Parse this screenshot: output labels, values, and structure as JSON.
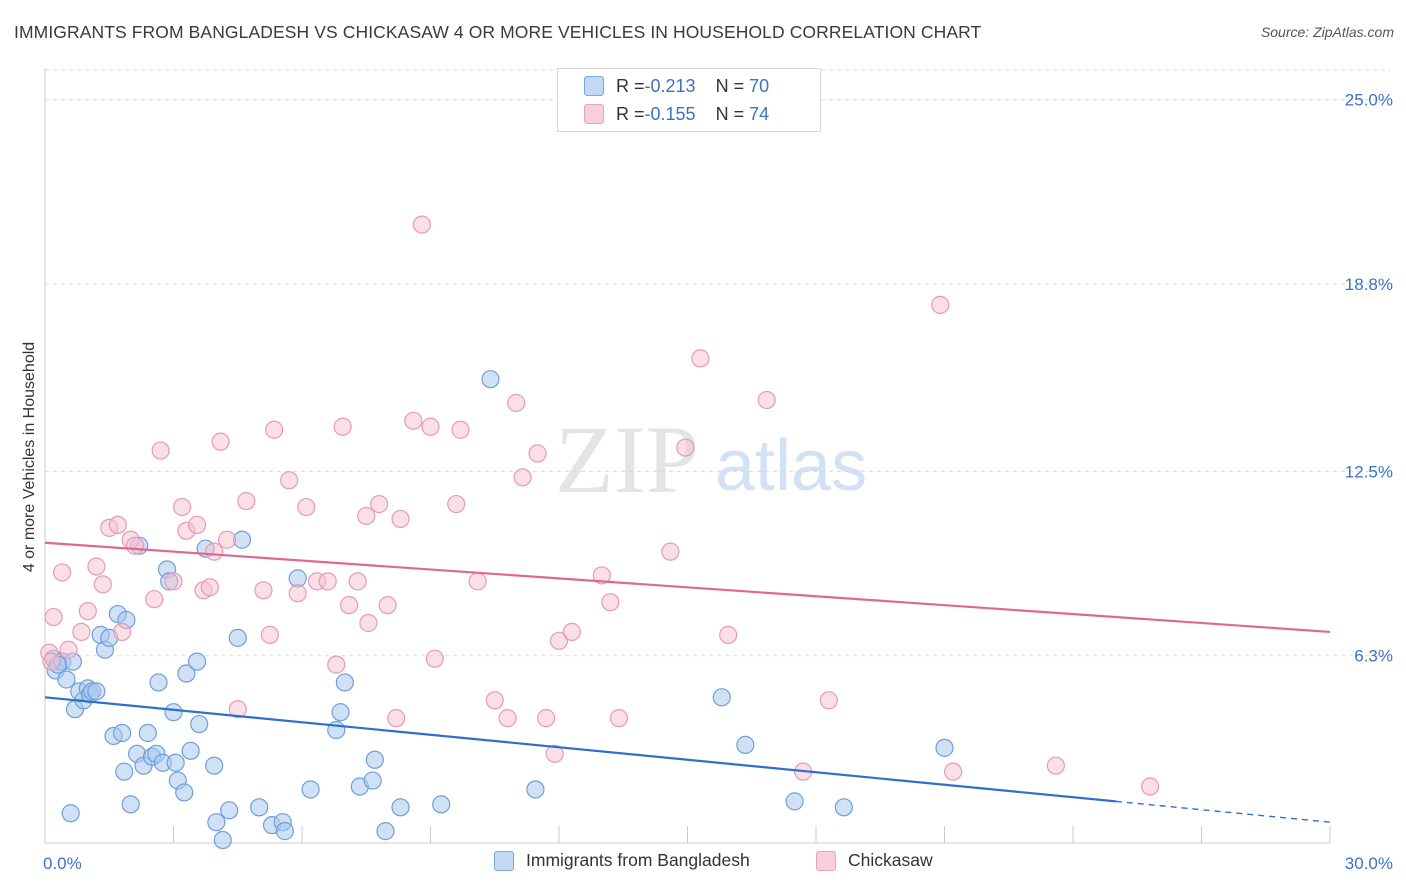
{
  "title": "IMMIGRANTS FROM BANGLADESH VS CHICKASAW 4 OR MORE VEHICLES IN HOUSEHOLD CORRELATION CHART",
  "source": "Source: ZipAtlas.com",
  "watermark": {
    "zip": "ZIP",
    "atlas": "atlas"
  },
  "colors": {
    "blue_fill": "#a9c8ef",
    "blue_stroke": "#6f9fd8",
    "blue_line": "#2f6fcc",
    "pink_fill": "#f5bfd0",
    "pink_stroke": "#e79ab4",
    "pink_line": "#e0688f",
    "tick_label": "#3a73c4",
    "grid": "#d9d9d9"
  },
  "legend": {
    "row1": {
      "r_label": "R = ",
      "r_value": "-0.213",
      "n_label": "N = ",
      "n_value": "70"
    },
    "row2": {
      "r_label": "R = ",
      "r_value": "-0.155",
      "n_label": "N = ",
      "n_value": "74"
    }
  },
  "chart_data": {
    "type": "scatter",
    "title": "IMMIGRANTS FROM BANGLADESH VS CHICKASAW 4 OR MORE VEHICLES IN HOUSEHOLD CORRELATION CHART",
    "xlabel": "",
    "ylabel": "4 or more Vehicles in Household",
    "xlim": [
      0,
      30
    ],
    "ylim": [
      0,
      26
    ],
    "x_tick_labels": [
      "0.0%",
      "30.0%"
    ],
    "y_ticks": [
      6.3,
      12.5,
      18.8,
      25.0
    ],
    "y_tick_labels": [
      "6.3%",
      "12.5%",
      "18.8%",
      "25.0%"
    ],
    "grid": true,
    "legend_position": "top-center",
    "series": [
      {
        "name": "Immigrants from Bangladesh",
        "color": "#a9c8ef",
        "trend": {
          "x": [
            0,
            25.0,
            30
          ],
          "y": [
            4.9,
            1.4,
            0.7
          ],
          "solid_until": 25.0
        },
        "points": [
          [
            0.2,
            6.2
          ],
          [
            0.25,
            5.8
          ],
          [
            0.4,
            6.1
          ],
          [
            0.5,
            5.5
          ],
          [
            0.7,
            4.5
          ],
          [
            0.8,
            5.1
          ],
          [
            0.9,
            4.8
          ],
          [
            1.0,
            5.2
          ],
          [
            1.05,
            5.0
          ],
          [
            1.1,
            5.1
          ],
          [
            0.6,
            1.0
          ],
          [
            0.65,
            6.1
          ],
          [
            1.3,
            7.0
          ],
          [
            1.4,
            6.5
          ],
          [
            1.5,
            6.9
          ],
          [
            1.6,
            3.6
          ],
          [
            1.7,
            7.7
          ],
          [
            1.8,
            3.7
          ],
          [
            1.9,
            7.5
          ],
          [
            2.0,
            1.3
          ],
          [
            1.85,
            2.4
          ],
          [
            2.2,
            10.0
          ],
          [
            2.15,
            3.0
          ],
          [
            2.3,
            2.6
          ],
          [
            2.4,
            3.7
          ],
          [
            2.5,
            2.9
          ],
          [
            2.6,
            3.0
          ],
          [
            2.65,
            5.4
          ],
          [
            2.75,
            2.7
          ],
          [
            2.85,
            9.2
          ],
          [
            2.9,
            8.8
          ],
          [
            3.0,
            4.4
          ],
          [
            3.05,
            2.7
          ],
          [
            3.1,
            2.1
          ],
          [
            3.25,
            1.7
          ],
          [
            3.3,
            5.7
          ],
          [
            3.4,
            3.1
          ],
          [
            3.55,
            6.1
          ],
          [
            3.6,
            4.0
          ],
          [
            3.75,
            9.9
          ],
          [
            3.95,
            2.6
          ],
          [
            4.0,
            0.7
          ],
          [
            4.15,
            0.1
          ],
          [
            4.3,
            1.1
          ],
          [
            4.5,
            6.9
          ],
          [
            4.6,
            10.2
          ],
          [
            5.0,
            1.2
          ],
          [
            5.3,
            0.6
          ],
          [
            5.55,
            0.7
          ],
          [
            5.6,
            0.4
          ],
          [
            5.9,
            8.9
          ],
          [
            6.2,
            1.8
          ],
          [
            6.8,
            3.8
          ],
          [
            6.9,
            4.4
          ],
          [
            7.0,
            5.4
          ],
          [
            7.35,
            1.9
          ],
          [
            7.65,
            2.1
          ],
          [
            7.7,
            2.8
          ],
          [
            7.95,
            0.4
          ],
          [
            8.3,
            1.2
          ],
          [
            9.25,
            1.3
          ],
          [
            10.4,
            15.6
          ],
          [
            11.45,
            1.8
          ],
          [
            15.8,
            4.9
          ],
          [
            16.35,
            3.3
          ],
          [
            17.5,
            1.4
          ],
          [
            18.65,
            1.2
          ],
          [
            21.0,
            3.2
          ],
          [
            1.2,
            5.1
          ],
          [
            0.3,
            6.0
          ]
        ]
      },
      {
        "name": "Chickasaw",
        "color": "#f5bfd0",
        "trend": {
          "x": [
            0,
            30
          ],
          "y": [
            10.1,
            7.1
          ]
        },
        "points": [
          [
            0.1,
            6.4
          ],
          [
            0.15,
            6.1
          ],
          [
            0.2,
            7.6
          ],
          [
            0.4,
            9.1
          ],
          [
            0.55,
            6.5
          ],
          [
            0.85,
            7.1
          ],
          [
            1.0,
            7.8
          ],
          [
            1.2,
            9.3
          ],
          [
            1.35,
            8.7
          ],
          [
            1.5,
            10.6
          ],
          [
            1.7,
            10.7
          ],
          [
            1.8,
            7.1
          ],
          [
            2.0,
            10.2
          ],
          [
            2.1,
            10.0
          ],
          [
            2.55,
            8.2
          ],
          [
            2.7,
            13.2
          ],
          [
            3.0,
            8.8
          ],
          [
            3.2,
            11.3
          ],
          [
            3.3,
            10.5
          ],
          [
            3.55,
            10.7
          ],
          [
            3.7,
            8.5
          ],
          [
            3.85,
            8.6
          ],
          [
            3.95,
            9.8
          ],
          [
            4.1,
            13.5
          ],
          [
            4.25,
            10.2
          ],
          [
            4.5,
            4.5
          ],
          [
            4.7,
            11.5
          ],
          [
            5.1,
            8.5
          ],
          [
            5.25,
            7.0
          ],
          [
            5.35,
            13.9
          ],
          [
            5.7,
            12.2
          ],
          [
            5.9,
            8.4
          ],
          [
            6.1,
            11.3
          ],
          [
            6.35,
            8.8
          ],
          [
            6.6,
            8.8
          ],
          [
            6.8,
            6.0
          ],
          [
            6.95,
            14.0
          ],
          [
            7.1,
            8.0
          ],
          [
            7.3,
            8.8
          ],
          [
            7.5,
            11.0
          ],
          [
            7.55,
            7.4
          ],
          [
            7.8,
            11.4
          ],
          [
            8.0,
            8.0
          ],
          [
            8.2,
            4.2
          ],
          [
            8.3,
            10.9
          ],
          [
            8.6,
            14.2
          ],
          [
            8.8,
            20.8
          ],
          [
            9.0,
            14.0
          ],
          [
            9.1,
            6.2
          ],
          [
            9.6,
            11.4
          ],
          [
            9.7,
            13.9
          ],
          [
            10.1,
            8.8
          ],
          [
            10.5,
            4.8
          ],
          [
            10.8,
            4.2
          ],
          [
            11.0,
            14.8
          ],
          [
            11.15,
            12.3
          ],
          [
            11.5,
            13.1
          ],
          [
            11.7,
            4.2
          ],
          [
            11.9,
            3.0
          ],
          [
            12.0,
            6.8
          ],
          [
            12.3,
            7.1
          ],
          [
            13.0,
            9.0
          ],
          [
            13.2,
            8.1
          ],
          [
            13.4,
            4.2
          ],
          [
            14.6,
            9.8
          ],
          [
            14.95,
            13.3
          ],
          [
            15.3,
            16.3
          ],
          [
            15.95,
            7.0
          ],
          [
            16.85,
            14.9
          ],
          [
            17.7,
            2.4
          ],
          [
            18.3,
            4.8
          ],
          [
            20.9,
            18.1
          ],
          [
            21.2,
            2.4
          ],
          [
            23.6,
            2.6
          ],
          [
            25.8,
            1.9
          ]
        ]
      }
    ]
  },
  "bottom_legend": {
    "series1": "Immigrants from Bangladesh",
    "series2": "Chickasaw"
  }
}
